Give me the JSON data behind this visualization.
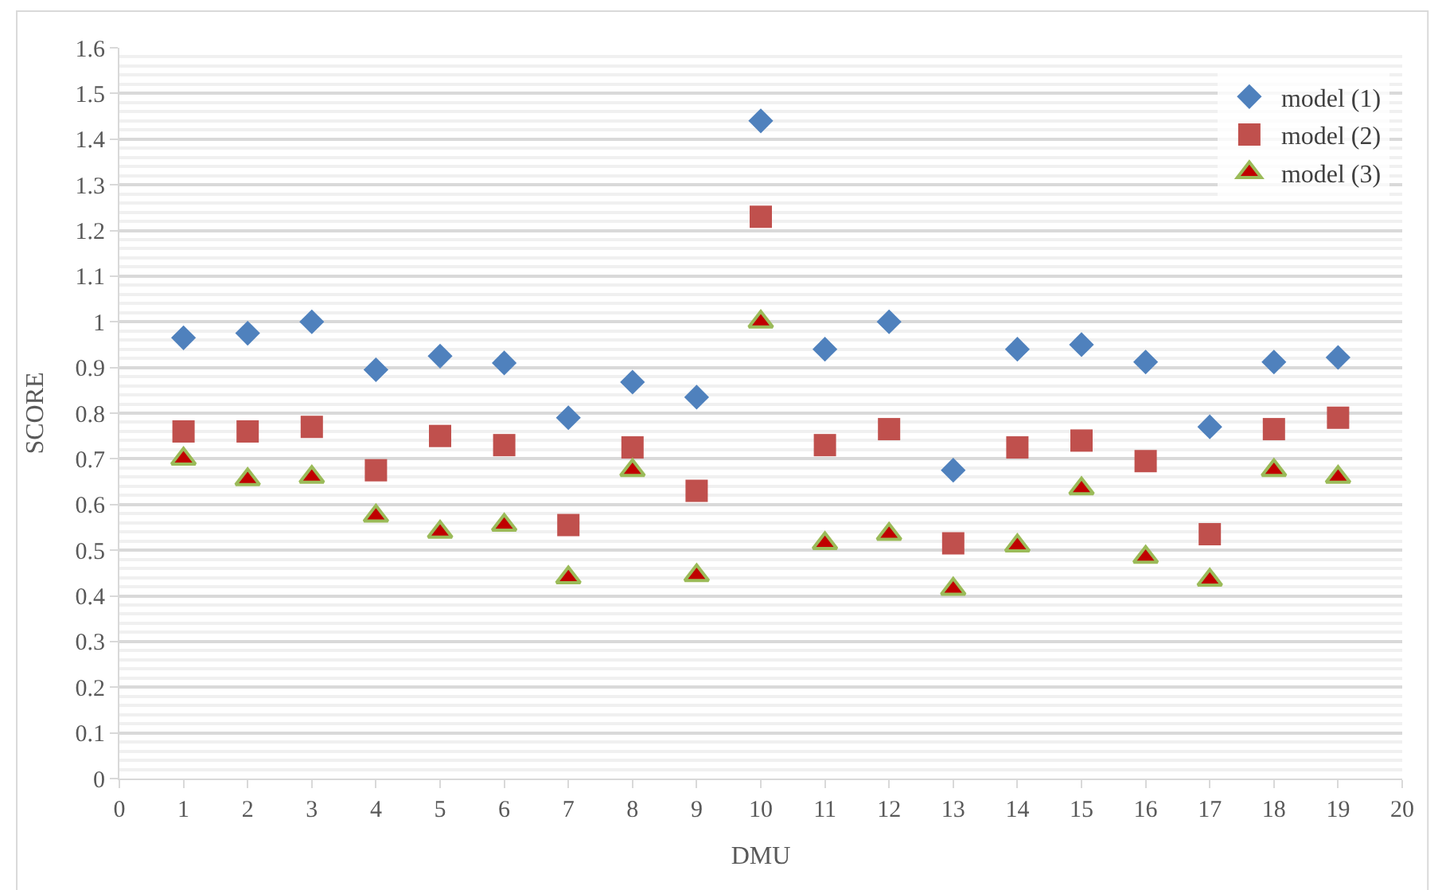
{
  "chart_data": {
    "type": "scatter",
    "xlabel": "DMU",
    "ylabel": "SCORE",
    "x": [
      1,
      2,
      3,
      4,
      5,
      6,
      7,
      8,
      9,
      10,
      11,
      12,
      13,
      14,
      15,
      16,
      17,
      18,
      19
    ],
    "series": [
      {
        "name": "model (1)",
        "color": "#4f81bd",
        "marker": "diamond",
        "values": [
          0.965,
          0.975,
          1.0,
          0.895,
          0.925,
          0.91,
          0.79,
          0.868,
          0.835,
          1.44,
          0.94,
          1.0,
          0.675,
          0.94,
          0.95,
          0.912,
          0.77,
          0.912,
          0.922
        ]
      },
      {
        "name": "model (2)",
        "color": "#c0504d",
        "marker": "square",
        "values": [
          0.76,
          0.76,
          0.77,
          0.675,
          0.75,
          0.73,
          0.555,
          0.725,
          0.63,
          1.23,
          0.73,
          0.765,
          0.515,
          0.725,
          0.74,
          0.695,
          0.535,
          0.765,
          0.79
        ]
      },
      {
        "name": "model (3)",
        "color": "#c00000",
        "marker": "triangle",
        "values": [
          0.7,
          0.655,
          0.66,
          0.575,
          0.54,
          0.555,
          0.44,
          0.675,
          0.445,
          1.0,
          0.515,
          0.535,
          0.415,
          0.51,
          0.635,
          0.485,
          0.435,
          0.675,
          0.66
        ]
      }
    ],
    "xlim": [
      0,
      20
    ],
    "xticks": [
      0,
      1,
      2,
      3,
      4,
      5,
      6,
      7,
      8,
      9,
      10,
      11,
      12,
      13,
      14,
      15,
      16,
      17,
      18,
      19,
      20
    ],
    "ylim": [
      0,
      1.6
    ],
    "yticks": [
      0,
      0.1,
      0.2,
      0.3,
      0.4,
      0.5,
      0.6,
      0.7,
      0.8,
      0.9,
      1,
      1.1,
      1.2,
      1.3,
      1.4,
      1.5,
      1.6
    ],
    "grid": "y",
    "legend": "top right"
  }
}
